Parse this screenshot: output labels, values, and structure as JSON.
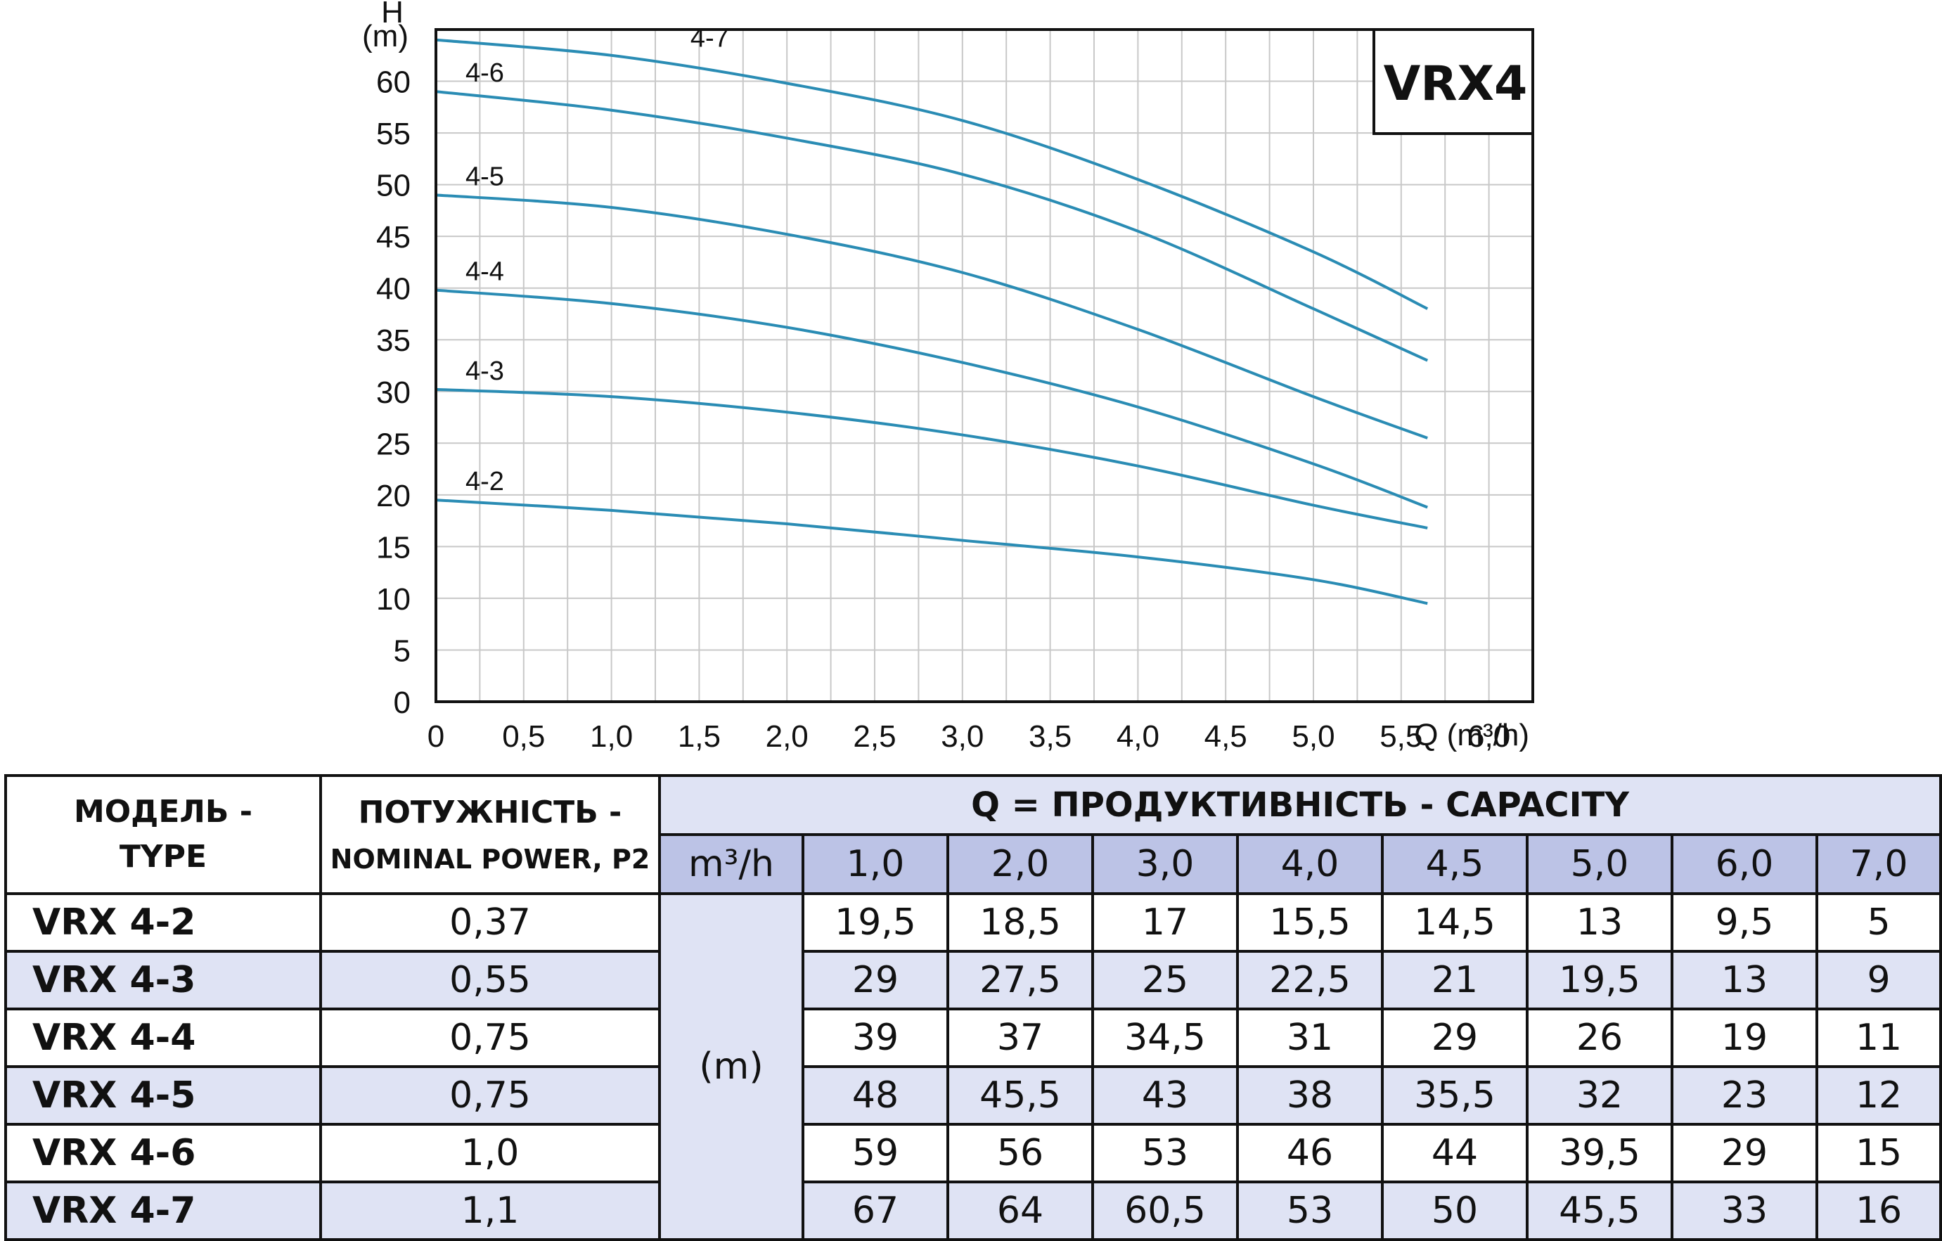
{
  "chart_data": {
    "type": "line",
    "ylabel_top": "H",
    "ylabel_unit": "(m)",
    "xlabel": "Q (m³/h)",
    "x_ticks": [
      "0",
      "0,5",
      "1,0",
      "1,5",
      "2,0",
      "2,5",
      "3,0",
      "3,5",
      "4,0",
      "4,5",
      "5,0",
      "5,5",
      "6,0"
    ],
    "y_ticks": [
      "0",
      "5",
      "10",
      "15",
      "20",
      "25",
      "30",
      "35",
      "40",
      "45",
      "50",
      "55",
      "60"
    ],
    "xlim": [
      0,
      6.25
    ],
    "ylim": [
      0,
      65
    ],
    "grid": true,
    "badge": "VRX4",
    "series": [
      {
        "name": "4-2",
        "x": [
          0,
          1,
          2,
          3,
          4,
          5,
          5.65
        ],
        "y": [
          19.5,
          18.5,
          17.2,
          15.6,
          14,
          11.8,
          9.5
        ]
      },
      {
        "name": "4-3",
        "x": [
          0,
          1,
          2,
          3,
          4,
          5,
          5.65
        ],
        "y": [
          30.2,
          29.5,
          28,
          25.8,
          22.8,
          19,
          16.8
        ]
      },
      {
        "name": "4-4",
        "x": [
          0,
          1,
          2,
          3,
          4,
          5,
          5.65
        ],
        "y": [
          39.8,
          38.5,
          36.2,
          32.8,
          28.5,
          23,
          18.8
        ]
      },
      {
        "name": "4-5",
        "x": [
          0,
          1,
          2,
          3,
          4,
          5,
          5.65
        ],
        "y": [
          49,
          47.8,
          45.2,
          41.5,
          36,
          29.5,
          25.5
        ]
      },
      {
        "name": "4-6",
        "x": [
          0,
          1,
          2,
          3,
          4,
          5,
          5.65
        ],
        "y": [
          59,
          57.2,
          54.5,
          51,
          45.5,
          38,
          33
        ]
      },
      {
        "name": "4-7",
        "x": [
          0,
          1,
          2,
          3,
          4,
          5,
          5.65
        ],
        "y": [
          64,
          62.5,
          59.8,
          56.2,
          50.5,
          43.5,
          38
        ]
      }
    ]
  },
  "table": {
    "model_header": [
      "МОДЕЛЬ -",
      "TYPE"
    ],
    "power_header": [
      "ПОТУЖНІСТЬ -",
      "NOMINAL POWER, P2"
    ],
    "capacity_header": "Q = ПРОДУКТИВНІСТЬ - CAPACITY",
    "q_unit": "m³/h",
    "h_unit": "(m)",
    "q_values": [
      "1,0",
      "2,0",
      "3,0",
      "4,0",
      "4,5",
      "5,0",
      "6,0",
      "7,0"
    ],
    "rows": [
      {
        "model": "VRX 4-2",
        "power": "0,37",
        "values": [
          "19,5",
          "18,5",
          "17",
          "15,5",
          "14,5",
          "13",
          "9,5",
          "5"
        ]
      },
      {
        "model": "VRX 4-3",
        "power": "0,55",
        "values": [
          "29",
          "27,5",
          "25",
          "22,5",
          "21",
          "19,5",
          "13",
          "9"
        ]
      },
      {
        "model": "VRX 4-4",
        "power": "0,75",
        "values": [
          "39",
          "37",
          "34,5",
          "31",
          "29",
          "26",
          "19",
          "11"
        ]
      },
      {
        "model": "VRX 4-5",
        "power": "0,75",
        "values": [
          "48",
          "45,5",
          "43",
          "38",
          "35,5",
          "32",
          "23",
          "12"
        ]
      },
      {
        "model": "VRX 4-6",
        "power": "1,0",
        "values": [
          "59",
          "56",
          "53",
          "46",
          "44",
          "39,5",
          "29",
          "15"
        ]
      },
      {
        "model": "VRX 4-7",
        "power": "1,1",
        "values": [
          "67",
          "64",
          "60,5",
          "53",
          "50",
          "45,5",
          "33",
          "16"
        ]
      }
    ]
  }
}
